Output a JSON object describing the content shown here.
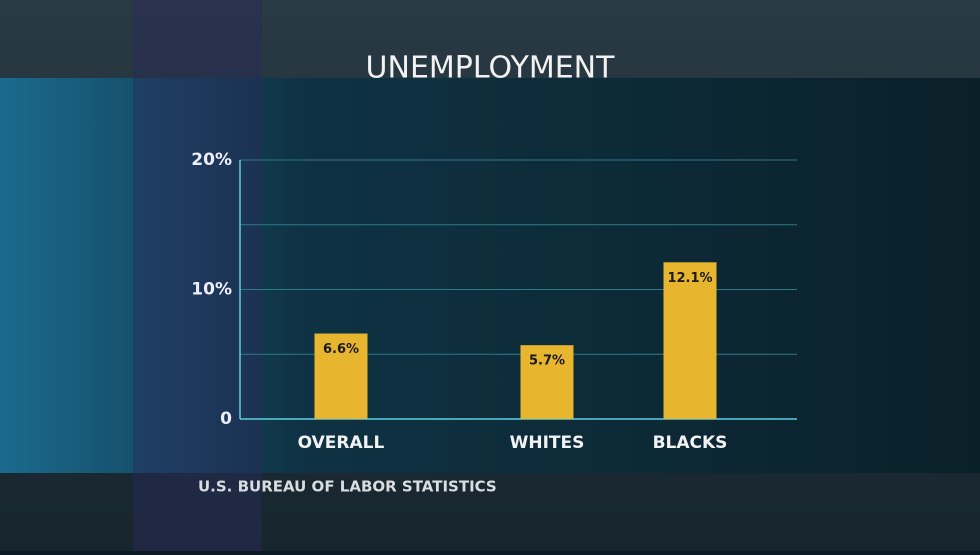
{
  "chart_data": {
    "type": "bar",
    "title": "UNEMPLOYMENT",
    "categories": [
      "OVERALL",
      "WHITES",
      "BLACKS"
    ],
    "values": [
      6.6,
      5.7,
      12.1
    ],
    "value_labels": [
      "6.6%",
      "5.7%",
      "12.1%"
    ],
    "color": "#e8b52e",
    "ylim": [
      0,
      20
    ],
    "yticks": [
      0,
      {
        "value": 10,
        "label": "10%"
      },
      {
        "value": 20,
        "label": "20%"
      }
    ],
    "minor_yticks": [
      5,
      15
    ],
    "grid": true,
    "source": "U.S. BUREAU OF LABOR STATISTICS"
  }
}
